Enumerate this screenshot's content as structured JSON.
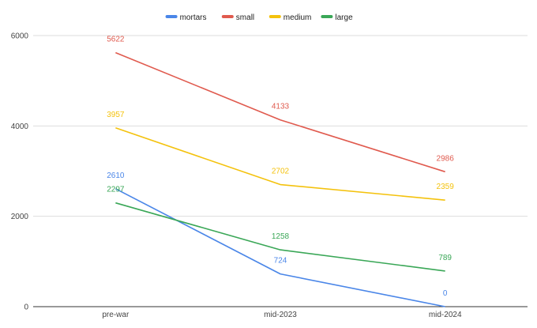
{
  "chart_data": {
    "type": "line",
    "categories": [
      "pre-war",
      "mid-2023",
      "mid-2024"
    ],
    "series": [
      {
        "name": "mortars",
        "color": "#4a86e8",
        "values": [
          2610,
          724,
          0
        ]
      },
      {
        "name": "small",
        "color": "#e05a4e",
        "values": [
          5622,
          4133,
          2986
        ]
      },
      {
        "name": "medium",
        "color": "#f4c20d",
        "values": [
          3957,
          2702,
          2359
        ]
      },
      {
        "name": "large",
        "color": "#3aa757",
        "values": [
          2297,
          1258,
          789
        ]
      }
    ],
    "ylim": [
      0,
      6000
    ],
    "yticks": [
      "0",
      "2000",
      "4000",
      "6000"
    ],
    "grid": true,
    "legend_position": "top-center",
    "data_labels": true
  }
}
